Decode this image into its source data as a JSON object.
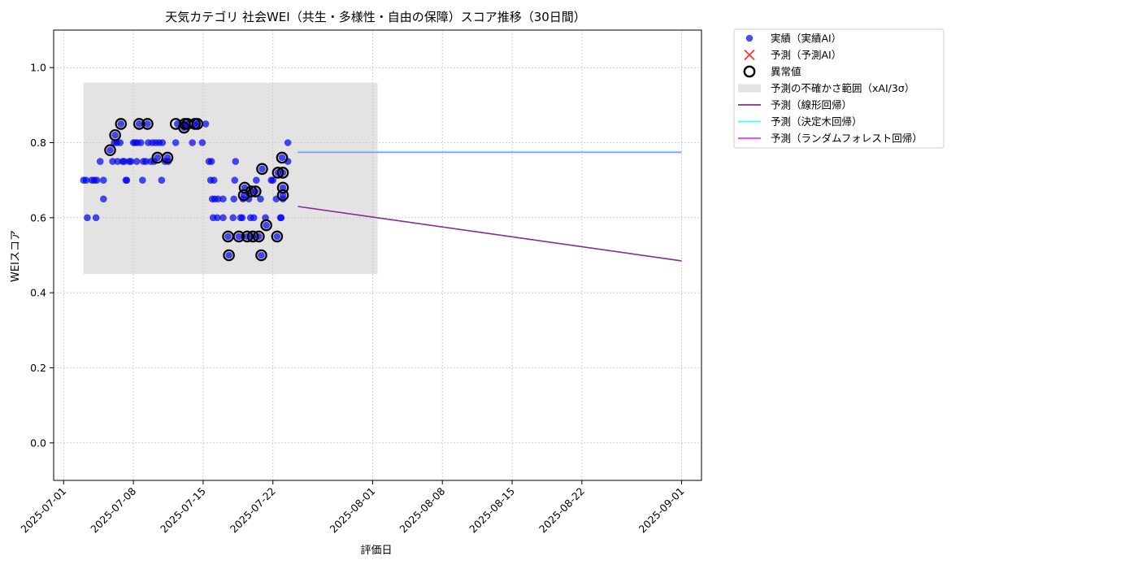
{
  "chart_data": {
    "type": "scatter",
    "title": "天気カテゴリ 社会WEI（共生・多様性・自由の保障）スコア推移（30日間）",
    "xlabel": "評価日",
    "ylabel": "WEIスコア",
    "xlim": [
      "2025-06-30",
      "2025-09-03"
    ],
    "ylim": [
      -0.1,
      1.1
    ],
    "x_ticks": [
      "2025-07-01",
      "2025-07-08",
      "2025-07-15",
      "2025-07-22",
      "2025-08-01",
      "2025-08-08",
      "2025-08-15",
      "2025-08-22",
      "2025-09-01"
    ],
    "y_ticks": [
      "0.0",
      "0.2",
      "0.4",
      "0.6",
      "0.8",
      "1.0"
    ],
    "grid": true,
    "legend_placement": "outside-top-right",
    "colors": {
      "actual": "#0000ee",
      "forecast": "#ff3333",
      "outlier": "#000000",
      "band": "#cccccc",
      "linear": "#8b2a96",
      "tree": "#33ffff",
      "forest": "#ff33ff"
    },
    "legend": [
      {
        "key": "actual",
        "label": "実績（実績AI）",
        "marker": "dot"
      },
      {
        "key": "forecast",
        "label": "予測（予測AI）",
        "marker": "x"
      },
      {
        "key": "outlier",
        "label": "異常値",
        "marker": "ring"
      },
      {
        "key": "band",
        "label": "予測の不確かさ範囲（xAI/3σ）",
        "marker": "rect"
      },
      {
        "key": "linear",
        "label": "予測（線形回帰）",
        "marker": "line"
      },
      {
        "key": "tree",
        "label": "予測（決定木回帰）",
        "marker": "line"
      },
      {
        "key": "forest",
        "label": "予測（ランダムフォレスト回帰）",
        "marker": "line"
      }
    ],
    "uncertainty_band": {
      "x": [
        "2025-07-03",
        "2025-08-01T12:00"
      ],
      "y": [
        0.45,
        0.96
      ]
    },
    "series": [
      {
        "key": "actual",
        "points": [
          [
            "2025-07-03T00:00",
            0.7
          ],
          [
            "2025-07-03T06:00",
            0.7
          ],
          [
            "2025-07-03T09:00",
            0.6
          ],
          [
            "2025-07-03T20:00",
            0.7
          ],
          [
            "2025-07-04T02:00",
            0.7
          ],
          [
            "2025-07-04T06:00",
            0.6
          ],
          [
            "2025-07-04T08:00",
            0.7
          ],
          [
            "2025-07-04T16:00",
            0.75
          ],
          [
            "2025-07-05T00:00",
            0.7
          ],
          [
            "2025-07-05T00:00",
            0.65
          ],
          [
            "2025-07-05T16:00",
            0.78
          ],
          [
            "2025-07-05T22:00",
            0.75
          ],
          [
            "2025-07-06T02:00",
            0.8
          ],
          [
            "2025-07-06T04:00",
            0.82
          ],
          [
            "2025-07-06T08:00",
            0.8
          ],
          [
            "2025-07-06T10:00",
            0.75
          ],
          [
            "2025-07-06T16:00",
            0.8
          ],
          [
            "2025-07-06T18:00",
            0.85
          ],
          [
            "2025-07-06T22:00",
            0.75
          ],
          [
            "2025-07-07T02:00",
            0.75
          ],
          [
            "2025-07-07T06:00",
            0.7
          ],
          [
            "2025-07-07T08:00",
            0.7
          ],
          [
            "2025-07-07T14:00",
            0.75
          ],
          [
            "2025-07-07T18:00",
            0.75
          ],
          [
            "2025-07-08T00:00",
            0.8
          ],
          [
            "2025-07-08T04:00",
            0.8
          ],
          [
            "2025-07-08T08:00",
            0.75
          ],
          [
            "2025-07-08T10:00",
            0.8
          ],
          [
            "2025-07-08T14:00",
            0.85
          ],
          [
            "2025-07-08T18:00",
            0.8
          ],
          [
            "2025-07-08T22:00",
            0.7
          ],
          [
            "2025-07-09T00:00",
            0.75
          ],
          [
            "2025-07-09T06:00",
            0.75
          ],
          [
            "2025-07-09T10:00",
            0.85
          ],
          [
            "2025-07-09T12:00",
            0.8
          ],
          [
            "2025-07-09T18:00",
            0.75
          ],
          [
            "2025-07-09T22:00",
            0.8
          ],
          [
            "2025-07-10T02:00",
            0.75
          ],
          [
            "2025-07-10T06:00",
            0.8
          ],
          [
            "2025-07-10T10:00",
            0.76
          ],
          [
            "2025-07-10T14:00",
            0.8
          ],
          [
            "2025-07-10T20:00",
            0.7
          ],
          [
            "2025-07-10T22:00",
            0.8
          ],
          [
            "2025-07-11T04:00",
            0.75
          ],
          [
            "2025-07-11T10:00",
            0.76
          ],
          [
            "2025-07-11T12:00",
            0.75
          ],
          [
            "2025-07-12T06:00",
            0.8
          ],
          [
            "2025-07-12T10:00",
            0.85
          ],
          [
            "2025-07-13T02:00",
            0.84
          ],
          [
            "2025-07-13T04:00",
            0.85
          ],
          [
            "2025-07-13T10:00",
            0.85
          ],
          [
            "2025-07-13T22:00",
            0.8
          ],
          [
            "2025-07-14T04:00",
            0.85
          ],
          [
            "2025-07-14T10:00",
            0.85
          ],
          [
            "2025-07-14T22:00",
            0.8
          ],
          [
            "2025-07-15T06:00",
            0.85
          ],
          [
            "2025-07-15T14:00",
            0.75
          ],
          [
            "2025-07-15T18:00",
            0.7
          ],
          [
            "2025-07-15T20:00",
            0.75
          ],
          [
            "2025-07-15T22:00",
            0.65
          ],
          [
            "2025-07-16T00:00",
            0.6
          ],
          [
            "2025-07-16T02:00",
            0.7
          ],
          [
            "2025-07-16T04:00",
            0.65
          ],
          [
            "2025-07-16T10:00",
            0.6
          ],
          [
            "2025-07-16T12:00",
            0.65
          ],
          [
            "2025-07-17T00:00",
            0.6
          ],
          [
            "2025-07-17T00:00",
            0.65
          ],
          [
            "2025-07-17T12:00",
            0.55
          ],
          [
            "2025-07-17T14:00",
            0.5
          ],
          [
            "2025-07-18T00:00",
            0.6
          ],
          [
            "2025-07-18T02:00",
            0.65
          ],
          [
            "2025-07-18T04:00",
            0.7
          ],
          [
            "2025-07-18T06:00",
            0.75
          ],
          [
            "2025-07-18T14:00",
            0.55
          ],
          [
            "2025-07-18T18:00",
            0.6
          ],
          [
            "2025-07-18T22:00",
            0.6
          ],
          [
            "2025-07-19T00:00",
            0.65
          ],
          [
            "2025-07-19T02:00",
            0.66
          ],
          [
            "2025-07-19T04:00",
            0.68
          ],
          [
            "2025-07-19T10:00",
            0.55
          ],
          [
            "2025-07-19T14:00",
            0.65
          ],
          [
            "2025-07-19T18:00",
            0.6
          ],
          [
            "2025-07-19T20:00",
            0.67
          ],
          [
            "2025-07-20T00:00",
            0.55
          ],
          [
            "2025-07-20T02:00",
            0.6
          ],
          [
            "2025-07-20T06:00",
            0.67
          ],
          [
            "2025-07-20T08:00",
            0.7
          ],
          [
            "2025-07-20T14:00",
            0.55
          ],
          [
            "2025-07-20T18:00",
            0.65
          ],
          [
            "2025-07-20T20:00",
            0.5
          ],
          [
            "2025-07-20T22:00",
            0.73
          ],
          [
            "2025-07-21T06:00",
            0.6
          ],
          [
            "2025-07-21T08:00",
            0.58
          ],
          [
            "2025-07-21T20:00",
            0.7
          ],
          [
            "2025-07-22T00:00",
            0.7
          ],
          [
            "2025-07-22T08:00",
            0.65
          ],
          [
            "2025-07-22T10:00",
            0.55
          ],
          [
            "2025-07-22T12:00",
            0.72
          ],
          [
            "2025-07-22T18:00",
            0.6
          ],
          [
            "2025-07-22T20:00",
            0.6
          ],
          [
            "2025-07-22T22:00",
            0.76
          ],
          [
            "2025-07-23T00:00",
            0.72
          ],
          [
            "2025-07-23T00:00",
            0.68
          ],
          [
            "2025-07-23T00:00",
            0.66
          ],
          [
            "2025-07-23T00:00",
            0.65
          ],
          [
            "2025-07-23T12:00",
            0.75
          ],
          [
            "2025-07-23T12:00",
            0.8
          ]
        ]
      },
      {
        "key": "outlier",
        "points": [
          [
            "2025-07-05T16:00",
            0.78
          ],
          [
            "2025-07-06T04:00",
            0.82
          ],
          [
            "2025-07-06T18:00",
            0.85
          ],
          [
            "2025-07-08T14:00",
            0.85
          ],
          [
            "2025-07-09T10:00",
            0.85
          ],
          [
            "2025-07-10T10:00",
            0.76
          ],
          [
            "2025-07-11T10:00",
            0.76
          ],
          [
            "2025-07-12T06:00",
            0.85
          ],
          [
            "2025-07-13T02:00",
            0.84
          ],
          [
            "2025-07-13T04:00",
            0.85
          ],
          [
            "2025-07-13T10:00",
            0.85
          ],
          [
            "2025-07-14T04:00",
            0.85
          ],
          [
            "2025-07-14T10:00",
            0.85
          ],
          [
            "2025-07-17T12:00",
            0.55
          ],
          [
            "2025-07-17T14:00",
            0.5
          ],
          [
            "2025-07-18T14:00",
            0.55
          ],
          [
            "2025-07-19T02:00",
            0.66
          ],
          [
            "2025-07-19T04:00",
            0.68
          ],
          [
            "2025-07-19T10:00",
            0.55
          ],
          [
            "2025-07-19T20:00",
            0.67
          ],
          [
            "2025-07-20T00:00",
            0.55
          ],
          [
            "2025-07-20T06:00",
            0.67
          ],
          [
            "2025-07-20T14:00",
            0.55
          ],
          [
            "2025-07-20T20:00",
            0.5
          ],
          [
            "2025-07-20T22:00",
            0.73
          ],
          [
            "2025-07-21T08:00",
            0.58
          ],
          [
            "2025-07-22T10:00",
            0.55
          ],
          [
            "2025-07-22T12:00",
            0.72
          ],
          [
            "2025-07-22T22:00",
            0.76
          ],
          [
            "2025-07-23T00:00",
            0.72
          ],
          [
            "2025-07-23T00:00",
            0.68
          ],
          [
            "2025-07-23T00:00",
            0.66
          ]
        ]
      },
      {
        "key": "linear",
        "points": [
          [
            "2025-07-24T12:00",
            0.63
          ],
          [
            "2025-09-01T00:00",
            0.485
          ]
        ]
      },
      {
        "key": "tree",
        "points": [
          [
            "2025-07-24T12:00",
            0.776
          ],
          [
            "2025-09-01T00:00",
            0.776
          ]
        ]
      },
      {
        "key": "forest",
        "points": [
          [
            "2025-07-24T12:00",
            0.774
          ],
          [
            "2025-09-01T00:00",
            0.774
          ]
        ]
      }
    ]
  }
}
